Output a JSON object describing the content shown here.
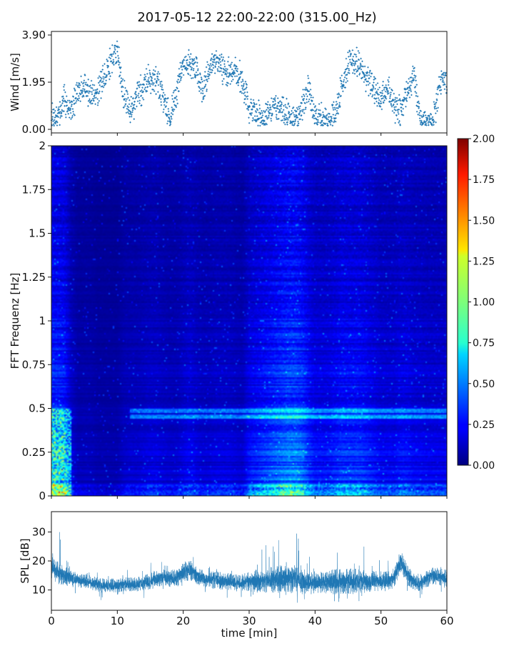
{
  "title": "2017-05-12 22:00-22:00 (315.00_Hz)",
  "chart_data": [
    {
      "type": "scatter",
      "panel": "wind",
      "ylabel": "Wind [m/s]",
      "xlim": [
        0,
        60
      ],
      "ylim": [
        0,
        3.9
      ],
      "yticks": [
        "0.00",
        "1.95",
        "3.90"
      ],
      "ytick_values": [
        0,
        1.95,
        3.9
      ],
      "series_color": "#1f77b4",
      "trend": {
        "x": [
          0,
          1,
          2,
          3,
          4,
          5,
          6,
          7,
          8,
          9,
          10,
          11,
          12,
          13,
          14,
          15,
          16,
          17,
          18,
          19,
          20,
          21,
          22,
          23,
          24,
          25,
          26,
          27,
          28,
          29,
          30,
          31,
          32,
          33,
          34,
          35,
          36,
          37,
          38,
          39,
          40,
          41,
          42,
          43,
          44,
          45,
          46,
          47,
          48,
          49,
          50,
          51,
          52,
          53,
          54,
          55,
          56,
          57,
          58,
          59,
          60
        ],
        "y": [
          0.4,
          0.5,
          1.2,
          0.8,
          1.5,
          1.8,
          1.4,
          1.6,
          2.1,
          2.8,
          3.3,
          1.4,
          0.8,
          1.3,
          1.8,
          2.2,
          2.0,
          1.3,
          0.5,
          1.6,
          2.6,
          2.8,
          2.4,
          1.6,
          2.6,
          2.9,
          2.5,
          2.3,
          2.4,
          2.0,
          0.9,
          0.6,
          0.5,
          0.7,
          1.0,
          0.8,
          0.5,
          0.4,
          1.0,
          1.7,
          0.4,
          0.5,
          0.3,
          0.6,
          1.7,
          2.7,
          2.8,
          2.5,
          2.0,
          1.6,
          1.1,
          1.8,
          0.9,
          0.7,
          1.6,
          2.2,
          0.4,
          0.3,
          0.4,
          2.0,
          1.9
        ]
      }
    },
    {
      "type": "heatmap",
      "panel": "spectrogram",
      "ylabel": "FFT Frequenz [Hz]",
      "xlim": [
        0,
        60
      ],
      "ylim": [
        0,
        2
      ],
      "yticks": [
        "0",
        "0.25",
        "0.5",
        "0.75",
        "1",
        "1.25",
        "1.5",
        "1.75",
        "2"
      ],
      "ytick_values": [
        0,
        0.25,
        0.5,
        0.75,
        1,
        1.25,
        1.5,
        1.75,
        2
      ],
      "colormap": "jet",
      "colorbar": {
        "range": [
          0,
          2
        ],
        "ticks": [
          "0.00",
          "0.25",
          "0.50",
          "0.75",
          "1.00",
          "1.25",
          "1.50",
          "1.75",
          "2.00"
        ],
        "tick_values": [
          0,
          0.25,
          0.5,
          0.75,
          1,
          1.25,
          1.5,
          1.75,
          2
        ]
      },
      "time_activity": {
        "x": [
          0,
          1,
          2,
          3,
          4,
          5,
          6,
          7,
          8,
          9,
          10,
          11,
          12,
          13,
          14,
          15,
          16,
          17,
          18,
          19,
          20,
          21,
          22,
          23,
          24,
          25,
          26,
          27,
          28,
          29,
          30,
          31,
          32,
          33,
          34,
          35,
          36,
          37,
          38,
          39,
          40,
          41,
          42,
          43,
          44,
          45,
          46,
          47,
          48,
          49,
          50,
          51,
          52,
          53,
          54,
          55,
          56,
          57,
          58,
          59,
          60
        ],
        "level": [
          0.55,
          0.55,
          0.5,
          0.25,
          0.15,
          0.15,
          0.15,
          0.12,
          0.12,
          0.12,
          0.12,
          0.18,
          0.2,
          0.2,
          0.22,
          0.25,
          0.25,
          0.22,
          0.2,
          0.2,
          0.25,
          0.3,
          0.25,
          0.22,
          0.22,
          0.25,
          0.25,
          0.25,
          0.22,
          0.2,
          0.35,
          0.4,
          0.45,
          0.5,
          0.55,
          0.6,
          0.65,
          0.65,
          0.6,
          0.45,
          0.35,
          0.35,
          0.35,
          0.4,
          0.45,
          0.45,
          0.45,
          0.45,
          0.4,
          0.35,
          0.3,
          0.3,
          0.3,
          0.35,
          0.35,
          0.3,
          0.3,
          0.28,
          0.28,
          0.28,
          0.28
        ]
      },
      "band_lines_hz": [
        0.45,
        0.48
      ]
    },
    {
      "type": "line",
      "panel": "spl",
      "xlabel": "time [min]",
      "ylabel": "SPL [dB]",
      "xlim": [
        0,
        60
      ],
      "ylim": [
        3,
        37
      ],
      "xticks": [
        "0",
        "10",
        "20",
        "30",
        "40",
        "50",
        "60"
      ],
      "xtick_values": [
        0,
        10,
        20,
        30,
        40,
        50,
        60
      ],
      "yticks": [
        "10",
        "20",
        "30"
      ],
      "ytick_values": [
        10,
        20,
        30
      ],
      "series_color": "#1f77b4",
      "envelope": {
        "x": [
          0,
          1,
          2,
          3,
          4,
          5,
          6,
          7,
          8,
          9,
          10,
          11,
          12,
          13,
          14,
          15,
          16,
          17,
          18,
          19,
          20,
          21,
          22,
          23,
          24,
          25,
          26,
          27,
          28,
          29,
          30,
          31,
          32,
          33,
          34,
          35,
          36,
          37,
          38,
          39,
          40,
          41,
          42,
          43,
          44,
          45,
          46,
          47,
          48,
          49,
          50,
          51,
          52,
          53,
          54,
          55,
          56,
          57,
          58,
          59,
          60
        ],
        "mean": [
          18,
          16,
          15,
          14,
          13.5,
          13,
          12.5,
          12,
          11.5,
          11.5,
          11.5,
          12,
          12,
          12,
          12.5,
          13,
          14,
          14.5,
          14,
          14,
          16,
          17,
          15,
          14,
          13.5,
          13.5,
          13,
          13,
          12.5,
          12.5,
          13,
          13,
          13,
          13.5,
          13.5,
          14,
          14,
          13.5,
          13,
          12.5,
          12.5,
          12.5,
          12.5,
          13,
          13,
          13,
          13,
          13,
          13,
          13,
          13,
          13,
          14,
          20,
          15,
          13,
          12.5,
          14,
          15,
          14.5,
          14
        ],
        "spread": [
          4,
          4,
          3.5,
          3,
          2.5,
          2.5,
          2.5,
          2.5,
          2.5,
          2.5,
          2.5,
          2.5,
          2.5,
          2.5,
          2.5,
          3,
          3,
          3,
          3,
          3,
          3.5,
          3.5,
          3,
          3,
          3,
          3,
          3,
          3,
          3,
          3,
          3.5,
          4,
          4,
          4.5,
          4.5,
          5,
          5,
          5,
          4.5,
          4,
          4,
          4,
          4,
          4.5,
          4.5,
          4.5,
          4.5,
          4,
          4,
          3.5,
          3.5,
          3.5,
          3.5,
          4,
          3.5,
          3,
          3,
          3,
          3,
          3,
          3
        ],
        "spike_max": [
          33,
          35,
          32,
          20,
          18,
          17,
          17,
          16,
          15,
          16,
          16,
          17,
          17,
          17,
          18,
          20,
          21,
          20,
          19,
          19,
          22,
          24,
          20,
          18,
          18,
          18,
          18,
          17,
          17,
          17,
          30,
          28,
          32,
          33,
          30,
          34,
          34,
          32,
          28,
          22,
          24,
          26,
          26,
          32,
          34,
          28,
          26,
          26,
          26,
          20,
          28,
          22,
          24,
          30,
          20,
          18,
          20,
          22,
          22,
          20,
          20
        ]
      }
    }
  ]
}
